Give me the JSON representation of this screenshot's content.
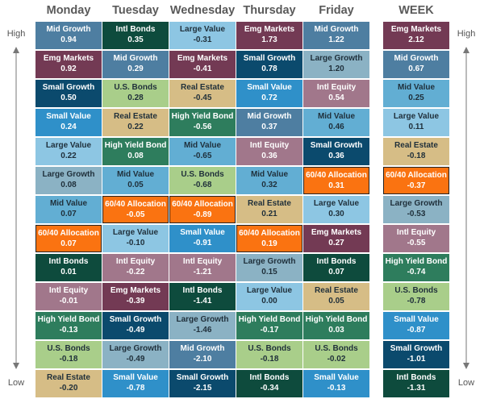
{
  "headers": [
    "Monday",
    "Tuesday",
    "Wednesday",
    "Thursday",
    "Friday",
    "WEEK"
  ],
  "axis": {
    "high": "High",
    "low": "Low"
  },
  "colors": {
    "Mid Growth": "#4e7ea1",
    "Emg Markets": "#733a54",
    "Small Growth": "#0b4a6d",
    "Small Value": "#2f90c9",
    "Large Value": "#8dc6e3",
    "Large Growth": "#8bb2c4",
    "Mid Value": "#62aed3",
    "60/40 Allocation": "#fa7311",
    "Intl Bonds": "#0e4b3d",
    "Intl Equity": "#a1778b",
    "High Yield Bond": "#2e7d5d",
    "U.S. Bonds": "#a9ce8a",
    "Real Estate": "#d6bd86",
    "Intl Growth": "#6f2d49"
  },
  "columns": [
    [
      {
        "name": "Mid Growth",
        "value": "0.94"
      },
      {
        "name": "Emg Markets",
        "value": "0.92"
      },
      {
        "name": "Small Growth",
        "value": "0.50"
      },
      {
        "name": "Small Value",
        "value": "0.24"
      },
      {
        "name": "Large Value",
        "value": "0.22"
      },
      {
        "name": "Large Growth",
        "value": "0.08"
      },
      {
        "name": "Mid Value",
        "value": "0.07"
      },
      {
        "name": "60/40 Allocation",
        "value": "0.07"
      },
      {
        "name": "Intl Bonds",
        "value": "0.01"
      },
      {
        "name": "Intl Equity",
        "value": "-0.01"
      },
      {
        "name": "High Yield Bond",
        "value": "-0.13"
      },
      {
        "name": "U.S. Bonds",
        "value": "-0.18"
      },
      {
        "name": "Real Estate",
        "value": "-0.20"
      }
    ],
    [
      {
        "name": "Intl Bonds",
        "value": "0.35"
      },
      {
        "name": "Mid Growth",
        "value": "0.29"
      },
      {
        "name": "U.S. Bonds",
        "value": "0.28"
      },
      {
        "name": "Real Estate",
        "value": "0.22"
      },
      {
        "name": "High Yield Bond",
        "value": "0.08"
      },
      {
        "name": "Mid Value",
        "value": "0.05"
      },
      {
        "name": "60/40 Allocation",
        "value": "-0.05"
      },
      {
        "name": "Large Value",
        "value": "-0.10"
      },
      {
        "name": "Intl Equity",
        "value": "-0.22"
      },
      {
        "name": "Emg Markets",
        "value": "-0.39"
      },
      {
        "name": "Small Growth",
        "value": "-0.49"
      },
      {
        "name": "Large Growth",
        "value": "-0.49"
      },
      {
        "name": "Small Value",
        "value": "-0.78"
      }
    ],
    [
      {
        "name": "Large Value",
        "value": "-0.31"
      },
      {
        "name": "Emg Markets",
        "value": "-0.41"
      },
      {
        "name": "Real Estate",
        "value": "-0.45"
      },
      {
        "name": "High Yield Bond",
        "value": "-0.56"
      },
      {
        "name": "Mid Value",
        "value": "-0.65"
      },
      {
        "name": "U.S. Bonds",
        "value": "-0.68"
      },
      {
        "name": "60/40 Allocation",
        "value": "-0.89"
      },
      {
        "name": "Small Value",
        "value": "-0.91"
      },
      {
        "name": "Intl Equity",
        "value": "-1.21"
      },
      {
        "name": "Intl Bonds",
        "value": "-1.41"
      },
      {
        "name": "Large Growth",
        "value": "-1.46"
      },
      {
        "name": "Mid Growth",
        "value": "-2.10"
      },
      {
        "name": "Small Growth",
        "value": "-2.15"
      }
    ],
    [
      {
        "name": "Emg Markets",
        "value": "1.73"
      },
      {
        "name": "Small Growth",
        "value": "0.78"
      },
      {
        "name": "Small Value",
        "value": "0.72"
      },
      {
        "name": "Mid Growth",
        "value": "0.37"
      },
      {
        "name": "Intl Equity",
        "value": "0.36"
      },
      {
        "name": "Mid Value",
        "value": "0.32"
      },
      {
        "name": "Real Estate",
        "value": "0.21"
      },
      {
        "name": "60/40 Allocation",
        "value": "0.19"
      },
      {
        "name": "Large Growth",
        "value": "0.15"
      },
      {
        "name": "Large Value",
        "value": "0.00"
      },
      {
        "name": "High Yield Bond",
        "value": "-0.17"
      },
      {
        "name": "U.S. Bonds",
        "value": "-0.18"
      },
      {
        "name": "Intl Bonds",
        "value": "-0.34"
      }
    ],
    [
      {
        "name": "Mid Growth",
        "value": "1.22"
      },
      {
        "name": "Large Growth",
        "value": "1.20"
      },
      {
        "name": "Intl Equity",
        "value": "0.54"
      },
      {
        "name": "Mid Value",
        "value": "0.46"
      },
      {
        "name": "Small Growth",
        "value": "0.36"
      },
      {
        "name": "60/40 Allocation",
        "value": "0.31"
      },
      {
        "name": "Large Value",
        "value": "0.30"
      },
      {
        "name": "Emg Markets",
        "value": "0.27"
      },
      {
        "name": "Intl Bonds",
        "value": "0.07"
      },
      {
        "name": "Real Estate",
        "value": "0.05"
      },
      {
        "name": "High Yield Bond",
        "value": "0.03"
      },
      {
        "name": "U.S. Bonds",
        "value": "-0.02"
      },
      {
        "name": "Small Value",
        "value": "-0.13"
      }
    ],
    [
      {
        "name": "Emg Markets",
        "value": "2.12"
      },
      {
        "name": "Mid Growth",
        "value": "0.67"
      },
      {
        "name": "Mid Value",
        "value": "0.25"
      },
      {
        "name": "Large Value",
        "value": "0.11"
      },
      {
        "name": "Real Estate",
        "value": "-0.18"
      },
      {
        "name": "60/40 Allocation",
        "value": "-0.37"
      },
      {
        "name": "Large Growth",
        "value": "-0.53"
      },
      {
        "name": "Intl Equity",
        "value": "-0.55"
      },
      {
        "name": "High Yield Bond",
        "value": "-0.74"
      },
      {
        "name": "U.S. Bonds",
        "value": "-0.78"
      },
      {
        "name": "Small Value",
        "value": "-0.87"
      },
      {
        "name": "Small Growth",
        "value": "-1.01"
      },
      {
        "name": "Intl Bonds",
        "value": "-1.31"
      }
    ]
  ]
}
